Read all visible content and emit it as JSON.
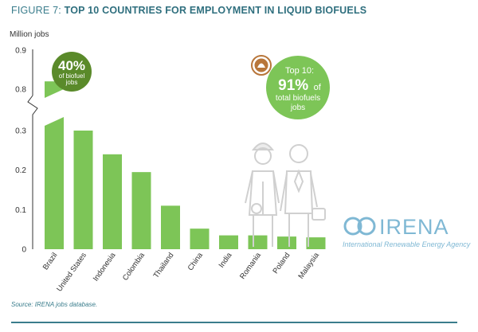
{
  "figure": {
    "prefix": "FIGURE 7:",
    "title": "TOP 10 COUNTRIES FOR EMPLOYMENT IN LIQUID BIOFUELS",
    "source": "Source: IRENA jobs database."
  },
  "colors": {
    "bar": "#7dc557",
    "callout_left": "#5a8a2a",
    "callout_right": "#7dc557",
    "accent": "#3a7d8c",
    "brand": "#7fb8d4"
  },
  "callout_left": {
    "big": "40%",
    "line1": "of biofuel",
    "line2": "jobs"
  },
  "callout_right": {
    "line1": "Top 10:",
    "big": "91%",
    "of": "of",
    "line2": "total biofuels",
    "line3": "jobs"
  },
  "brand": {
    "name": "IRENA",
    "tagline": "International Renewable Energy Agency"
  },
  "chart_data": {
    "type": "bar",
    "ylabel": "Million jobs",
    "categories": [
      "Brazil",
      "United States",
      "Indonesia",
      "Colombia",
      "Thailand",
      "China",
      "India",
      "Romania",
      "Poland",
      "Malaysia"
    ],
    "values": [
      0.82,
      0.31,
      0.24,
      0.195,
      0.11,
      0.052,
      0.035,
      0.035,
      0.032,
      0.03
    ],
    "yticks_lower": [
      "0",
      "0.1",
      "0.2",
      "0.3"
    ],
    "yticks_upper": [
      "0.8",
      "0.9"
    ],
    "axis_break": [
      0.3,
      0.8
    ],
    "ylim": [
      0,
      0.9
    ],
    "grid": false
  }
}
